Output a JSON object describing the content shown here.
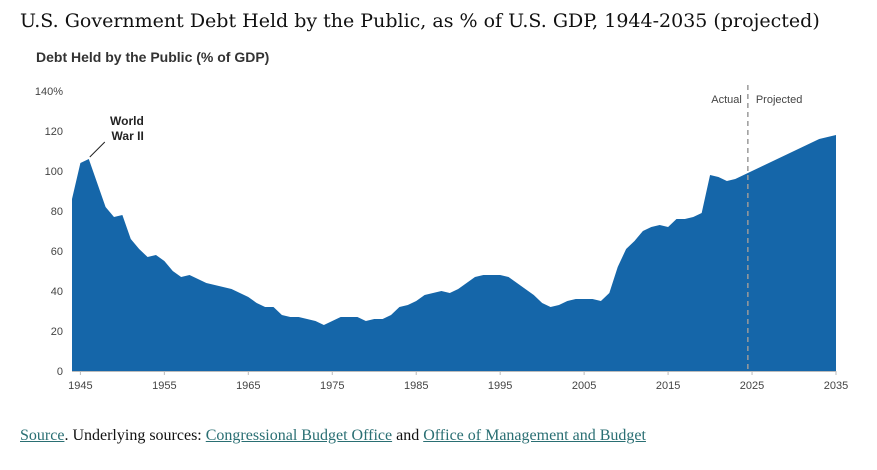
{
  "page": {
    "title": "U.S. Government Debt Held by the Public, as % of U.S. GDP, 1944-2035 (projected)",
    "source_link": "Source",
    "source_prefix": ". Underlying sources: ",
    "cbo_link": "Congressional Budget Office",
    "and_text": " and ",
    "omb_link": "Office of Management and Budget"
  },
  "colors": {
    "area": "#1566a9",
    "divider": "#9a9a9a",
    "axis_text": "#444444",
    "title_text": "#333333",
    "link": "#2a6f73"
  },
  "chart_data": {
    "type": "area",
    "title": "Debt Held by the Public (% of GDP)",
    "xlabel": "",
    "ylabel": "",
    "xlim": [
      1944,
      2035
    ],
    "ylim": [
      0,
      140
    ],
    "yticks": [
      0,
      20,
      40,
      60,
      80,
      100,
      120,
      140
    ],
    "ytick_labels": [
      "0",
      "20",
      "40",
      "60",
      "80",
      "100",
      "120",
      "140%"
    ],
    "xticks": [
      1945,
      1955,
      1965,
      1975,
      1985,
      1995,
      2005,
      2015,
      2025,
      2035
    ],
    "xtick_labels": [
      "1945",
      "1955",
      "1965",
      "1975",
      "1985",
      "1995",
      "2005",
      "2015",
      "2025",
      "2035"
    ],
    "divider_x": 2024.5,
    "divider_labels": {
      "left": "Actual",
      "right": "Projected"
    },
    "annotation": {
      "lines": [
        "World",
        "War II"
      ],
      "x": 1946,
      "y": 106
    },
    "series": [
      {
        "name": "Debt Held by the Public (% of GDP)",
        "x": [
          1944,
          1945,
          1946,
          1947,
          1948,
          1949,
          1950,
          1951,
          1952,
          1953,
          1954,
          1955,
          1956,
          1957,
          1958,
          1959,
          1960,
          1961,
          1962,
          1963,
          1964,
          1965,
          1966,
          1967,
          1968,
          1969,
          1970,
          1971,
          1972,
          1973,
          1974,
          1975,
          1976,
          1977,
          1978,
          1979,
          1980,
          1981,
          1982,
          1983,
          1984,
          1985,
          1986,
          1987,
          1988,
          1989,
          1990,
          1991,
          1992,
          1993,
          1994,
          1995,
          1996,
          1997,
          1998,
          1999,
          2000,
          2001,
          2002,
          2003,
          2004,
          2005,
          2006,
          2007,
          2008,
          2009,
          2010,
          2011,
          2012,
          2013,
          2014,
          2015,
          2016,
          2017,
          2018,
          2019,
          2020,
          2021,
          2022,
          2023,
          2024,
          2025,
          2026,
          2027,
          2028,
          2029,
          2030,
          2031,
          2032,
          2033,
          2034,
          2035
        ],
        "values": [
          86,
          104,
          106,
          94,
          82,
          77,
          78,
          66,
          61,
          57,
          58,
          55,
          50,
          47,
          48,
          46,
          44,
          43,
          42,
          41,
          39,
          37,
          34,
          32,
          32,
          28,
          27,
          27,
          26,
          25,
          23,
          25,
          27,
          27,
          27,
          25,
          26,
          26,
          28,
          32,
          33,
          35,
          38,
          39,
          40,
          39,
          41,
          44,
          47,
          48,
          48,
          48,
          47,
          44,
          41,
          38,
          34,
          32,
          33,
          35,
          36,
          36,
          36,
          35,
          39,
          52,
          61,
          65,
          70,
          72,
          73,
          72,
          76,
          76,
          77,
          79,
          98,
          97,
          95,
          96,
          98,
          100,
          102,
          104,
          106,
          108,
          110,
          112,
          114,
          116,
          117,
          118
        ]
      }
    ]
  }
}
